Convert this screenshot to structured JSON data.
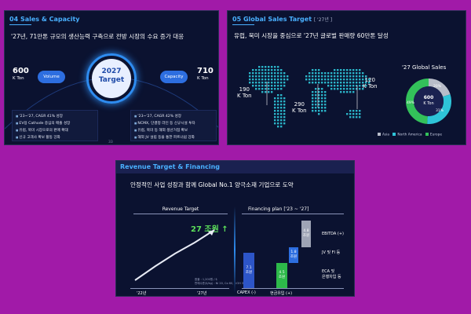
{
  "slide1": {
    "num": "04",
    "title": "Sales & Capacity",
    "headline": "'27년, 71만톤 규모의 생산능력 구축으로 전방 시장의 수요 증가 대응",
    "left_value": "600",
    "left_unit": "K Ton",
    "left_pill": "Volume",
    "center_year": "2027",
    "center_label": "Target",
    "right_pill": "Capacity",
    "right_value": "710",
    "right_unit": "K Ton",
    "left_bullets": [
      "'23~'27, CAGR 41% 성장",
      "EV용 Cathode 중심의 매출 성장",
      "유럽, 북미 시장으로의 판매 확대",
      "신규 고객사 확보 활동 강화"
    ],
    "right_bullets": [
      "'23~'27, CAGR 42% 성장",
      "NCMX, 단결정 라인 등 신규시설 투자",
      "유럽, 북미 등 해외 생산거점 확보",
      "해외 JV 설립 등을 통한 파트너쉽 강화"
    ],
    "page": "33"
  },
  "slide2": {
    "num": "05",
    "title": "Global Sales Target",
    "title_year": "[ '27년 ]",
    "headline": "유럽, 북미 시장을 중심으로 '27년 글로벌 판매량 60만톤 달성",
    "regions": [
      {
        "value": "190",
        "unit": "K Ton"
      },
      {
        "value": "290",
        "unit": "K Ton"
      },
      {
        "value": "120",
        "unit": "K Ton"
      }
    ],
    "donut_title": "'27 Global Sales",
    "donut_center_value": "600",
    "donut_center_unit": "K Ton",
    "donut": [
      {
        "name": "Asia",
        "pct": 20,
        "label": "20%",
        "color": "#b8bcc9"
      },
      {
        "name": "North America",
        "pct": 31,
        "label": "31%",
        "color": "#2ec4d8"
      },
      {
        "name": "Europe",
        "pct": 49,
        "label": "49%",
        "color": "#33c15a"
      }
    ]
  },
  "slide3": {
    "title": "Revenue Target & Financing",
    "headline": "안정적인 사업 성장과 함께 Global No.1 양극소재 기업으로 도약",
    "revenue_title": "Revenue Target",
    "revenue_value": "27 조원",
    "revenue_arrow": "↑",
    "start_label": "'22년",
    "end_label": "'27년",
    "note_line1": "환율 : 1,200원 / $",
    "note_line2": "판매수준($/kg) : Ni 20, Co 60, LiOH 30",
    "financing_title": "Financing plan",
    "financing_period": "['23 ~ '27]",
    "capex_value": "7.1",
    "capex_unit": "조원",
    "cash_value": "4.5",
    "cash_unit": "조원",
    "jv_value": "1.8",
    "jv_unit": "조원",
    "ebitda_value": "4.8",
    "ebitda_unit": "조원",
    "label_ebitda": "EBITDA (+)",
    "label_jv": "JV 및 FI 등",
    "label_eca1": "ECA 및",
    "label_eca2": "은행차입 등",
    "label_capex": "CAPEX (-)",
    "label_cash": "현금유입 (+)"
  }
}
